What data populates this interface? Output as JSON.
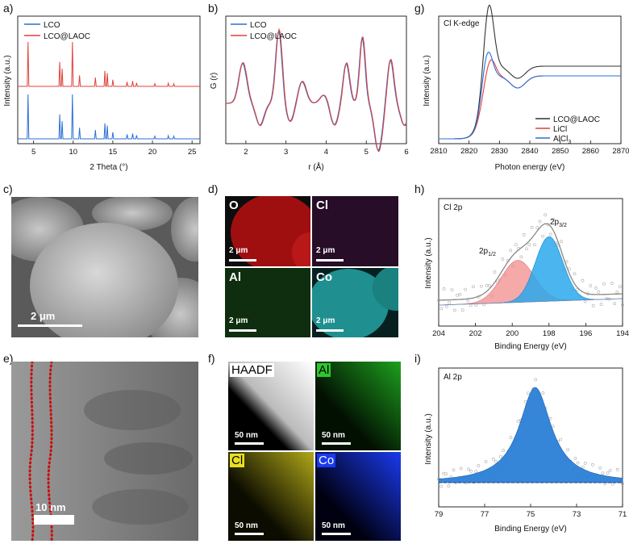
{
  "panel_labels": {
    "a": "a)",
    "b": "b)",
    "c": "c)",
    "d": "d)",
    "e": "e)",
    "f": "f)",
    "g": "g)",
    "h": "h)",
    "i": "i)"
  },
  "panel_a": {
    "ylabel": "Intensity (a.u.)",
    "xlabel": "2 Theta (°)",
    "xticks": [
      "5",
      "10",
      "15",
      "20",
      "25"
    ],
    "legend": [
      "LCO",
      "LCO@LAOC"
    ],
    "colors": {
      "LCO": "#2b6fd6",
      "LCO@LAOC": "#e0413a"
    }
  },
  "panel_b": {
    "ylabel": "G (r)",
    "xlabel": "r (Å)",
    "xticks": [
      "2",
      "3",
      "4",
      "5",
      "6"
    ],
    "legend": [
      "LCO",
      "LCO@LAOC"
    ]
  },
  "panel_c": {
    "scale": "2 μm"
  },
  "panel_d": {
    "tiles": [
      {
        "label": "O",
        "scale": "2 μm"
      },
      {
        "label": "Cl",
        "scale": "2 μm"
      },
      {
        "label": "Al",
        "scale": "2 μm"
      },
      {
        "label": "Co",
        "scale": "2 μm"
      }
    ]
  },
  "panel_e": {
    "scale": "10 nm"
  },
  "panel_f": {
    "tiles": [
      {
        "label": "HAADF",
        "scale": "50 nm"
      },
      {
        "label": "Al",
        "scale": "50 nm"
      },
      {
        "label": "Cl",
        "scale": "50 nm"
      },
      {
        "label": "Co",
        "scale": "50 nm"
      }
    ]
  },
  "panel_g": {
    "title": "Cl K-edge",
    "ylabel": "Intensity (a.u.)",
    "xlabel": "Photon energy (eV)",
    "xticks": [
      "2810",
      "2820",
      "2830",
      "2840",
      "2850",
      "2860",
      "2870"
    ],
    "legend": [
      "LCO@LAOC",
      "LiCl",
      "AlCl3"
    ],
    "legend_display": [
      "LCO@LAOC",
      "LiCl",
      "AlCl"
    ],
    "legend_sub": [
      "",
      "",
      "3"
    ],
    "colors": {
      "LCO@LAOC": "#333333",
      "LiCl": "#e0413a",
      "AlCl3": "#2b6fd6"
    }
  },
  "panel_h": {
    "title": "Cl 2p",
    "ylabel": "Intensity (a.u.)",
    "xlabel": "Binding Energy (eV)",
    "xticks": [
      "204",
      "202",
      "200",
      "198",
      "196",
      "194"
    ],
    "peak1": {
      "main": "2p",
      "sub": "1/2"
    },
    "peak2": {
      "main": "2p",
      "sub": "3/2"
    }
  },
  "panel_i": {
    "title": "Al 2p",
    "ylabel": "Intensity (a.u.)",
    "xlabel": "Binding Energy (eV)",
    "xticks": [
      "79",
      "77",
      "75",
      "73",
      "71"
    ]
  },
  "chart_data": [
    {
      "type": "line",
      "panel": "a",
      "xlabel": "2 Theta (°)",
      "ylabel": "Intensity (a.u.)",
      "xlim": [
        3,
        26
      ],
      "series": [
        {
          "name": "LCO",
          "peaks_2theta": [
            4.3,
            8.3,
            8.6,
            9.9,
            10.8,
            12.8,
            14.0,
            14.3,
            15.0,
            16.8,
            17.5,
            18.0,
            20.3,
            22.0,
            22.7
          ]
        },
        {
          "name": "LCO@LAOC",
          "peaks_2theta": [
            4.3,
            8.3,
            8.6,
            9.9,
            10.8,
            12.8,
            14.0,
            14.3,
            15.0,
            16.8,
            17.5,
            18.0,
            20.3,
            22.0,
            22.7
          ]
        }
      ]
    },
    {
      "type": "line",
      "panel": "b",
      "xlabel": "r (Å)",
      "ylabel": "G (r)",
      "xlim": [
        1.5,
        6
      ],
      "series": [
        {
          "name": "LCO",
          "peaks_r": [
            1.92,
            2.82,
            3.4,
            4.5,
            4.9,
            5.6
          ]
        },
        {
          "name": "LCO@LAOC",
          "peaks_r": [
            1.92,
            2.82,
            3.4,
            4.5,
            4.9,
            5.6
          ]
        }
      ]
    },
    {
      "type": "line",
      "panel": "g",
      "xlabel": "Photon energy (eV)",
      "ylabel": "Intensity (a.u.)",
      "xlim": [
        2810,
        2870
      ],
      "series": [
        {
          "name": "LCO@LAOC",
          "white_line_eV": 2826.5
        },
        {
          "name": "LiCl",
          "white_line_eV": 2827
        },
        {
          "name": "AlCl3",
          "white_line_eV": 2826
        }
      ]
    },
    {
      "type": "line",
      "panel": "h",
      "xlabel": "Binding Energy (eV)",
      "ylabel": "Intensity (a.u.)",
      "xlim": [
        204,
        194
      ],
      "series": [
        {
          "name": "2p1/2",
          "center_eV": 199.7
        },
        {
          "name": "2p3/2",
          "center_eV": 198.0
        }
      ]
    },
    {
      "type": "line",
      "panel": "i",
      "xlabel": "Binding Energy (eV)",
      "ylabel": "Intensity (a.u.)",
      "xlim": [
        79,
        71
      ],
      "series": [
        {
          "name": "Al 2p",
          "center_eV": 74.8
        }
      ]
    }
  ]
}
